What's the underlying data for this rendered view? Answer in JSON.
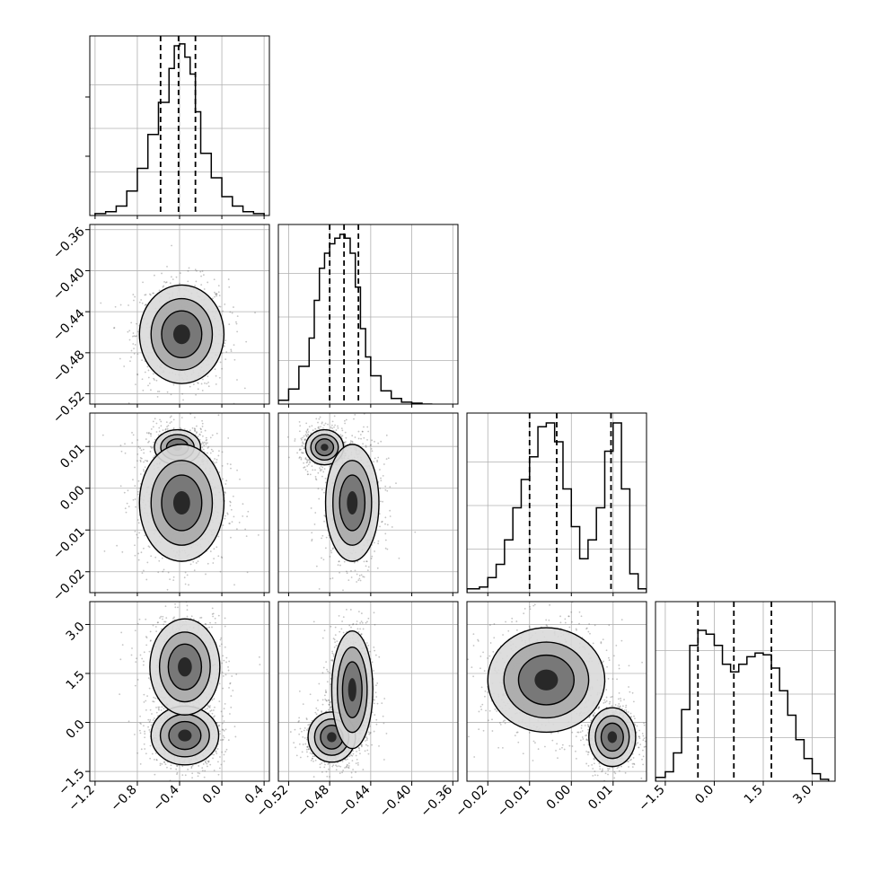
{
  "chart_data": {
    "type": "corner",
    "parameters": 4,
    "grid": true,
    "colors": {
      "line": "#000000",
      "grid": "#b0b0b0",
      "points": "#555555"
    },
    "quantile_style": "dashed",
    "quantiles": [
      [
        -0.58,
        -0.41,
        -0.25
      ],
      [
        -0.48,
        -0.466,
        -0.452
      ],
      [
        -0.01,
        -0.0035,
        0.0095
      ],
      [
        -0.5,
        0.6,
        1.75
      ]
    ],
    "ranges": [
      [
        -1.25,
        0.45
      ],
      [
        -0.53,
        -0.355
      ],
      [
        -0.025,
        0.018
      ],
      [
        -1.8,
        3.7
      ]
    ],
    "axis_ticks": [
      {
        "values": [
          -1.2,
          -0.8,
          -0.4,
          0.0,
          0.4
        ],
        "labels": [
          "−1.2",
          "−0.8",
          "−0.4",
          "0.0",
          "0.4"
        ]
      },
      {
        "values": [
          -0.52,
          -0.48,
          -0.44,
          -0.4,
          -0.36
        ],
        "labels": [
          "−0.52",
          "−0.48",
          "−0.44",
          "−0.40",
          "−0.36"
        ]
      },
      {
        "values": [
          -0.02,
          -0.01,
          0.0,
          0.01
        ],
        "labels": [
          "−0.02",
          "−0.01",
          "0.00",
          "0.01"
        ]
      },
      {
        "values": [
          -1.5,
          0.0,
          1.5,
          3.0
        ],
        "labels": [
          "−1.5",
          "0.0",
          "1.5",
          "3.0"
        ]
      }
    ],
    "histograms": [
      {
        "bins": [
          -1.2,
          -1.1,
          -1.0,
          -0.9,
          -0.8,
          -0.7,
          -0.6,
          -0.5,
          -0.45,
          -0.4,
          -0.35,
          -0.3,
          -0.25,
          -0.2,
          -0.1,
          0.0,
          0.1,
          0.2,
          0.3,
          0.4
        ],
        "counts": [
          0.01,
          0.02,
          0.05,
          0.13,
          0.25,
          0.43,
          0.6,
          0.78,
          0.9,
          0.91,
          0.84,
          0.75,
          0.55,
          0.33,
          0.2,
          0.1,
          0.05,
          0.02,
          0.01
        ]
      },
      {
        "bins": [
          -0.53,
          -0.52,
          -0.51,
          -0.5,
          -0.495,
          -0.49,
          -0.485,
          -0.48,
          -0.475,
          -0.47,
          -0.465,
          -0.46,
          -0.455,
          -0.45,
          -0.445,
          -0.44,
          -0.43,
          -0.42,
          -0.41,
          -0.4,
          -0.39,
          -0.38
        ],
        "counts": [
          0.02,
          0.08,
          0.2,
          0.35,
          0.55,
          0.72,
          0.8,
          0.85,
          0.88,
          0.9,
          0.88,
          0.8,
          0.62,
          0.4,
          0.25,
          0.15,
          0.07,
          0.03,
          0.01,
          0.005,
          0.0
        ]
      },
      {
        "bins": [
          -0.025,
          -0.022,
          -0.02,
          -0.018,
          -0.016,
          -0.014,
          -0.012,
          -0.01,
          -0.008,
          -0.006,
          -0.004,
          -0.002,
          0.0,
          0.002,
          0.004,
          0.006,
          0.008,
          0.01,
          0.012,
          0.014,
          0.016,
          0.018
        ],
        "counts": [
          0.02,
          0.03,
          0.08,
          0.15,
          0.28,
          0.45,
          0.6,
          0.72,
          0.88,
          0.9,
          0.8,
          0.55,
          0.35,
          0.18,
          0.28,
          0.45,
          0.75,
          0.9,
          0.55,
          0.1,
          0.02
        ]
      },
      {
        "bins": [
          -1.8,
          -1.5,
          -1.25,
          -1.0,
          -0.75,
          -0.5,
          -0.25,
          0.0,
          0.25,
          0.5,
          0.75,
          1.0,
          1.25,
          1.5,
          1.75,
          2.0,
          2.25,
          2.5,
          2.75,
          3.0,
          3.25,
          3.5
        ],
        "counts": [
          0.02,
          0.05,
          0.15,
          0.38,
          0.72,
          0.8,
          0.78,
          0.72,
          0.62,
          0.58,
          0.62,
          0.66,
          0.68,
          0.67,
          0.6,
          0.48,
          0.35,
          0.22,
          0.12,
          0.04,
          0.01
        ]
      }
    ],
    "blobs": {
      "1_0": [
        {
          "cx": -0.38,
          "cy": -0.462,
          "sx": 0.2,
          "sy": 0.024,
          "w": 1
        }
      ],
      "2_0": [
        {
          "cx": -0.42,
          "cy": 0.0098,
          "sx": 0.13,
          "sy": 0.0025,
          "w": 0.6
        },
        {
          "cx": -0.38,
          "cy": -0.0035,
          "sx": 0.2,
          "sy": 0.007,
          "w": 1
        }
      ],
      "2_1": [
        {
          "cx": -0.485,
          "cy": 0.0098,
          "sx": 0.011,
          "sy": 0.0025,
          "w": 0.6
        },
        {
          "cx": -0.458,
          "cy": -0.0035,
          "sx": 0.013,
          "sy": 0.007,
          "w": 1
        }
      ],
      "2_3": [],
      "3_0": [
        {
          "cx": -0.35,
          "cy": -0.4,
          "sx": 0.16,
          "sy": 0.45,
          "w": 1
        },
        {
          "cx": -0.35,
          "cy": 1.7,
          "sx": 0.18,
          "sy": 0.8,
          "w": 0.8
        }
      ],
      "3_1": [
        {
          "cx": -0.478,
          "cy": -0.45,
          "sx": 0.012,
          "sy": 0.4,
          "w": 0.9
        },
        {
          "cx": -0.458,
          "cy": 1.0,
          "sx": 0.01,
          "sy": 0.9,
          "w": 1
        }
      ],
      "3_2": [
        {
          "cx": 0.0098,
          "cy": -0.45,
          "sx": 0.0028,
          "sy": 0.45,
          "w": 1
        },
        {
          "cx": -0.006,
          "cy": 1.3,
          "sx": 0.007,
          "sy": 0.8,
          "w": 1
        }
      ]
    }
  }
}
